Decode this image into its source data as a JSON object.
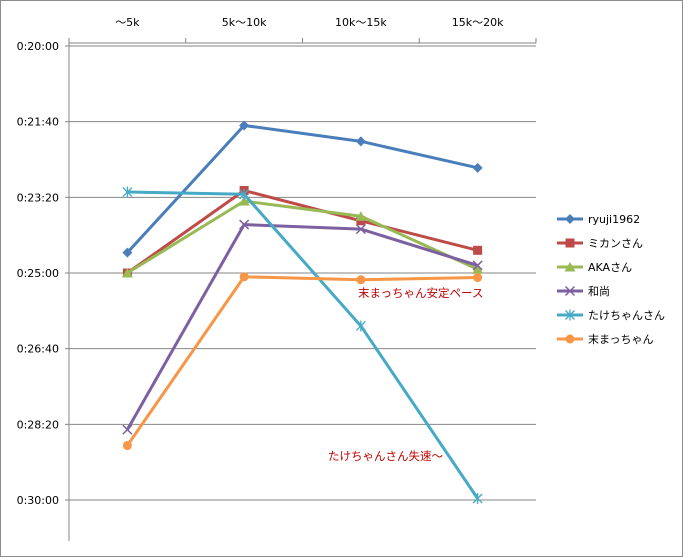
{
  "chart_data": {
    "type": "line",
    "title": "",
    "xlabel": "",
    "ylabel": "",
    "categories": [
      "～5k",
      "5k～10k",
      "10k～15k",
      "15k～20k"
    ],
    "y_ticks": [
      "0:20:00",
      "0:21:40",
      "0:23:20",
      "0:25:00",
      "0:26:40",
      "0:28:20",
      "0:30:00"
    ],
    "y_tick_seconds": [
      1200,
      1300,
      1400,
      1500,
      1600,
      1700,
      1800
    ],
    "ylim": [
      1200,
      1800
    ],
    "y_reversed": true,
    "x_axis_position": "top",
    "grid": true,
    "legend_position": "right",
    "series": [
      {
        "name": "ryuji1962",
        "color": "#4a7ebb",
        "marker": "diamond",
        "values": [
          "0:24:33",
          "0:21:45",
          "0:22:06",
          "0:22:41"
        ],
        "seconds": [
          1473,
          1305,
          1326,
          1361
        ]
      },
      {
        "name": "ミカンさん",
        "color": "#be4b48",
        "marker": "square",
        "values": [
          "0:25:00",
          "0:23:11",
          "0:23:51",
          "0:24:30"
        ],
        "seconds": [
          1500,
          1391,
          1431,
          1470
        ]
      },
      {
        "name": "AKAさん",
        "color": "#98b954",
        "marker": "triangle",
        "values": [
          "0:25:00",
          "0:23:25",
          "0:23:45",
          "0:24:55"
        ],
        "seconds": [
          1500,
          1405,
          1425,
          1495
        ]
      },
      {
        "name": "和尚",
        "color": "#7d60a0",
        "marker": "x",
        "values": [
          "0:28:27",
          "0:23:56",
          "0:24:02",
          "0:24:50"
        ],
        "seconds": [
          1707,
          1436,
          1442,
          1490
        ]
      },
      {
        "name": "たけちゃんさん",
        "color": "#46aac5",
        "marker": "star",
        "values": [
          "0:23:13",
          "0:23:16",
          "0:26:10",
          "0:29:58"
        ],
        "seconds": [
          1393,
          1396,
          1570,
          1798
        ]
      },
      {
        "name": "末まっちゃん",
        "color": "#f79646",
        "marker": "circle",
        "values": [
          "0:28:48",
          "0:25:05",
          "0:25:09",
          "0:25:06"
        ],
        "seconds": [
          1728,
          1505,
          1509,
          1506
        ]
      }
    ],
    "annotations": [
      {
        "text": "末まっちゃん安定ペース",
        "color": "#c00000"
      },
      {
        "text": "たけちゃんさん失速～",
        "color": "#c00000"
      }
    ]
  }
}
